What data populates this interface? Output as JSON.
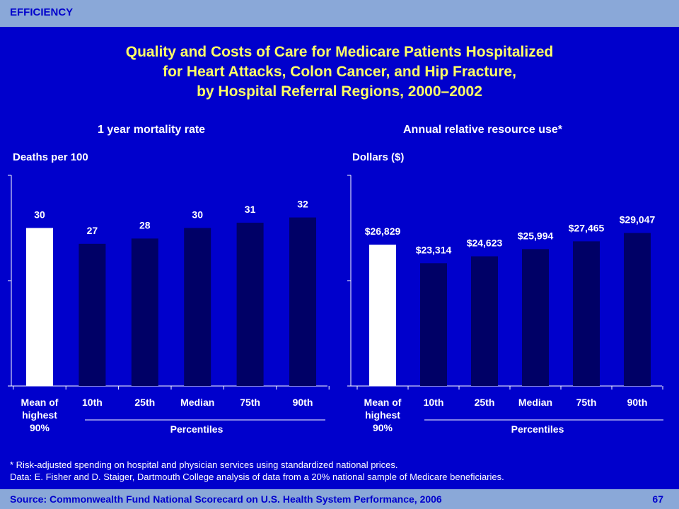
{
  "header": {
    "section": "EFFICIENCY"
  },
  "title_lines": [
    "Quality and Costs of Care for Medicare Patients Hospitalized",
    "for Heart Attacks, Colon Cancer, and Hip Fracture,",
    "by Hospital Referral Regions, 2000–2002"
  ],
  "chart_data": [
    {
      "type": "bar",
      "title": "1 year mortality rate",
      "ylabel": "Deaths per 100",
      "xlabel": "Percentiles",
      "categories": [
        "Mean of highest 90%",
        "10th",
        "25th",
        "Median",
        "75th",
        "90th"
      ],
      "values": [
        30,
        27,
        28,
        30,
        31,
        32
      ],
      "value_labels": [
        "30",
        "27",
        "28",
        "30",
        "31",
        "32"
      ],
      "ylim": [
        0,
        40
      ],
      "highlight_index": 0
    },
    {
      "type": "bar",
      "title": "Annual relative resource use*",
      "ylabel": "Dollars ($)",
      "xlabel": "Percentiles",
      "categories": [
        "Mean of highest 90%",
        "10th",
        "25th",
        "Median",
        "75th",
        "90th"
      ],
      "values": [
        26829,
        23314,
        24623,
        25994,
        27465,
        29047
      ],
      "value_labels": [
        "$26,829",
        "$23,314",
        "$24,623",
        "$25,994",
        "$27,465",
        "$29,047"
      ],
      "ylim": [
        0,
        40000
      ],
      "highlight_index": 0
    }
  ],
  "colors": {
    "background": "#0000CC",
    "bar": "#000066",
    "highlight_bar": "#FFFFFF",
    "title": "#FFFF66",
    "bar_band": "#8AA8D8"
  },
  "footnotes": [
    "* Risk-adjusted spending on hospital and physician services using standardized national prices.",
    "Data: E. Fisher and D. Staiger, Dartmouth College analysis of data from a 20% national sample of Medicare beneficiaries."
  ],
  "footer": {
    "source": "Source: Commonwealth Fund National Scorecard on U.S. Health System Performance, 2006",
    "page": "67"
  }
}
